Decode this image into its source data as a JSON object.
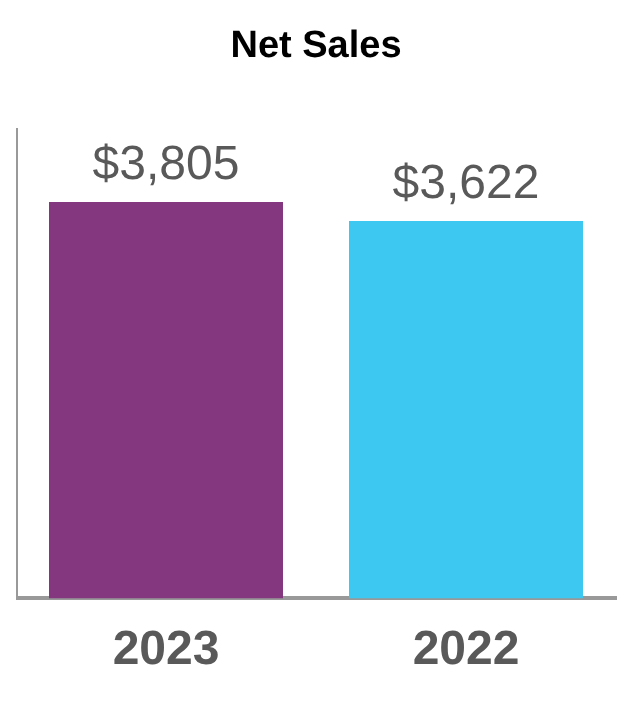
{
  "chart_data": {
    "type": "bar",
    "title": "Net Sales",
    "categories": [
      "2023",
      "2022"
    ],
    "values": [
      3805,
      3622
    ],
    "colors": [
      "#84367f",
      "#3cc8f0"
    ],
    "value_labels": [
      "$3,805",
      "$3,622"
    ],
    "grid": false,
    "legend": false
  }
}
